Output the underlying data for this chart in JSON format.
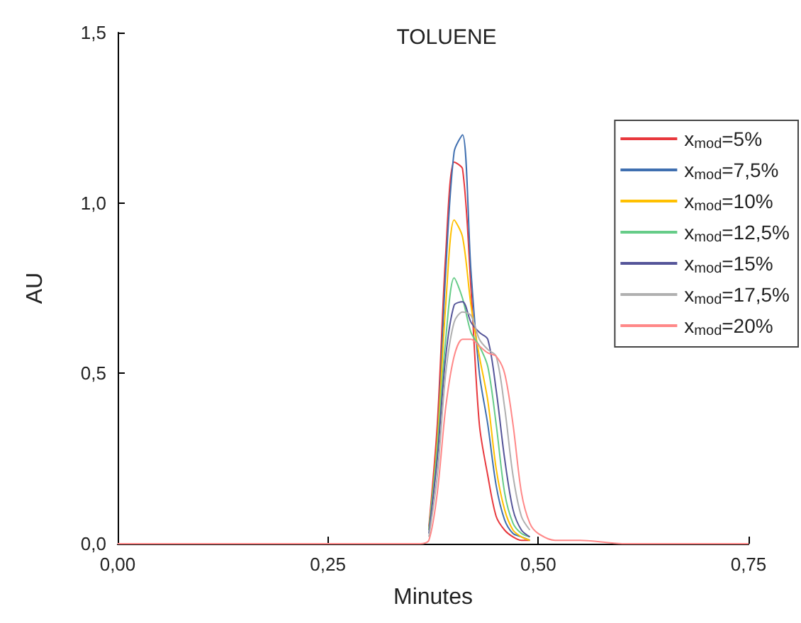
{
  "chart_data": {
    "type": "line",
    "title": "TOLUENE",
    "xlabel": "Minutes",
    "ylabel": "AU",
    "x": [
      0.37,
      0.38,
      0.39,
      0.4,
      0.41,
      0.42,
      0.43,
      0.44,
      0.45,
      0.46,
      0.47,
      0.48,
      0.49
    ],
    "xlim": [
      0,
      0.75
    ],
    "xticks": [
      {
        "value": 0,
        "label": "0,00"
      },
      {
        "value": 0.25,
        "label": "0,25"
      },
      {
        "value": 0.5,
        "label": "0,50"
      },
      {
        "value": 0.75,
        "label": "0,75"
      }
    ],
    "ylim": [
      0,
      1.5
    ],
    "yticks": [
      {
        "value": 0,
        "label": "0,0"
      },
      {
        "value": 0.5,
        "label": "0,5"
      },
      {
        "value": 1,
        "label": "1,0"
      },
      {
        "value": 1.5,
        "label": "1,5"
      }
    ],
    "grid": false,
    "legend": "right",
    "marker": "none",
    "line_style": "solid",
    "series": [
      {
        "name": "x$_{mod}$=5%",
        "color": "#e8383d",
        "values": [
          0.05,
          0.35,
          0.85,
          1.12,
          1.1,
          0.75,
          0.35,
          0.2,
          0.08,
          0.04,
          0.02,
          0.01,
          0.01
        ]
      },
      {
        "name": "x$_{mod}$=7,5%",
        "color": "#3f6fb0",
        "values": [
          0.04,
          0.3,
          0.8,
          1.15,
          1.2,
          0.8,
          0.5,
          0.35,
          0.17,
          0.07,
          0.03,
          0.02,
          0.01
        ]
      },
      {
        "name": "x$_{mod}$=10%",
        "color": "#ffc000",
        "values": [
          0.04,
          0.3,
          0.7,
          0.95,
          0.9,
          0.7,
          0.55,
          0.42,
          0.22,
          0.1,
          0.04,
          0.02,
          0.01
        ]
      },
      {
        "name": "x$_{mod}$=12,5%",
        "color": "#66cc88",
        "values": [
          0.04,
          0.28,
          0.6,
          0.78,
          0.72,
          0.62,
          0.58,
          0.52,
          0.35,
          0.15,
          0.06,
          0.03,
          0.02
        ]
      },
      {
        "name": "x$_{mod}$=15%",
        "color": "#555599",
        "values": [
          0.03,
          0.25,
          0.55,
          0.7,
          0.71,
          0.65,
          0.62,
          0.6,
          0.45,
          0.25,
          0.1,
          0.04,
          0.02
        ]
      },
      {
        "name": "x$_{mod}$=17,5%",
        "color": "#b0b0b0",
        "values": [
          0.02,
          0.2,
          0.5,
          0.65,
          0.68,
          0.67,
          0.6,
          0.57,
          0.55,
          0.4,
          0.2,
          0.08,
          0.04
        ]
      },
      {
        "name": "x$_{mod}$=20%",
        "color": "#ff8888",
        "x": [
          0,
          0.1,
          0.2,
          0.3,
          0.36,
          0.37,
          0.38,
          0.39,
          0.4,
          0.41,
          0.42,
          0.43,
          0.44,
          0.45,
          0.46,
          0.47,
          0.48,
          0.49,
          0.5,
          0.52,
          0.55,
          0.6,
          0.75
        ],
        "values": [
          0,
          0,
          0,
          0,
          0,
          0.01,
          0.15,
          0.4,
          0.55,
          0.6,
          0.6,
          0.58,
          0.56,
          0.55,
          0.5,
          0.35,
          0.15,
          0.06,
          0.03,
          0.01,
          0.01,
          0,
          0
        ]
      }
    ]
  }
}
